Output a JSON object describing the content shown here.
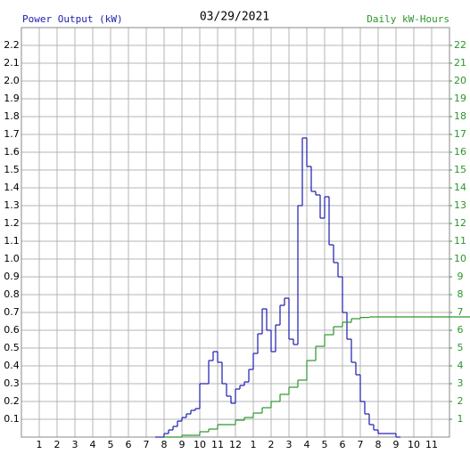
{
  "chart_data": {
    "type": "step",
    "title": "03/29/2021",
    "y_label": "Power Output (kW)",
    "y2_label": "Daily kW-Hours",
    "xlim": [
      0,
      24
    ],
    "xticks": [
      1,
      2,
      3,
      4,
      5,
      6,
      7,
      8,
      9,
      10,
      11,
      12,
      {
        "value": 13,
        "label": "1"
      },
      {
        "value": 14,
        "label": "2"
      },
      {
        "value": 15,
        "label": "3"
      },
      {
        "value": 16,
        "label": "4"
      },
      {
        "value": 17,
        "label": "5"
      },
      {
        "value": 18,
        "label": "6"
      },
      {
        "value": 19,
        "label": "7"
      },
      {
        "value": 20,
        "label": "8"
      },
      {
        "value": 21,
        "label": "9"
      },
      {
        "value": 22,
        "label": "10"
      },
      {
        "value": 23,
        "label": "11"
      }
    ],
    "ylim": [
      0,
      2.3
    ],
    "yticks": [
      0.1,
      0.2,
      0.3,
      0.4,
      0.5,
      0.6,
      0.7,
      0.8,
      0.9,
      {
        "value": 1,
        "label": "1.0"
      },
      1.1,
      1.2,
      1.3,
      1.4,
      1.5,
      1.6,
      1.7,
      1.8,
      1.9,
      {
        "value": 2,
        "label": "2.0"
      },
      2.1,
      2.2
    ],
    "y2lim": [
      0,
      23
    ],
    "y2ticks": [
      1,
      2,
      3,
      4,
      5,
      6,
      7,
      8,
      9,
      10,
      11,
      12,
      13,
      14,
      15,
      16,
      17,
      18,
      19,
      20,
      21,
      22
    ],
    "grid": true,
    "series": [
      {
        "name": "Power Output (kW)",
        "color": "#1c1cb0",
        "x": [
          7.5,
          7.75,
          8,
          8.25,
          8.5,
          8.75,
          9,
          9.25,
          9.5,
          9.75,
          10,
          10.25,
          10.5,
          10.75,
          11,
          11.25,
          11.5,
          11.75,
          12,
          12.25,
          12.5,
          12.75,
          13,
          13.25,
          13.5,
          13.75,
          14,
          14.25,
          14.5,
          14.75,
          15,
          15.25,
          15.5,
          15.75,
          16,
          16.25,
          16.5,
          16.75,
          17,
          17.25,
          17.5,
          17.75,
          18,
          18.25,
          18.5,
          18.75,
          19,
          19.25,
          19.5,
          19.75,
          20,
          20.25,
          20.5,
          20.75,
          21
        ],
        "values": [
          0,
          0,
          0.02,
          0.04,
          0.06,
          0.09,
          0.11,
          0.13,
          0.15,
          0.16,
          0.3,
          0.3,
          0.43,
          0.48,
          0.42,
          0.3,
          0.23,
          0.19,
          0.27,
          0.29,
          0.31,
          0.38,
          0.47,
          0.58,
          0.72,
          0.6,
          0.48,
          0.63,
          0.74,
          0.78,
          0.55,
          0.52,
          1.3,
          1.68,
          1.52,
          1.38,
          1.36,
          1.23,
          1.35,
          1.08,
          0.98,
          0.9,
          0.7,
          0.55,
          0.42,
          0.35,
          0.2,
          0.13,
          0.07,
          0.04,
          0.02,
          0.02,
          0.02,
          0.02,
          0
        ]
      },
      {
        "name": "Daily kW-Hours",
        "color": "#2a962a",
        "axis": "y2",
        "x": [
          8,
          9,
          10,
          10.5,
          11,
          12,
          12.5,
          13,
          13.5,
          14,
          14.5,
          15,
          15.5,
          16,
          16.5,
          17,
          17.5,
          18,
          18.5,
          19,
          19.5,
          20,
          24
        ],
        "values": [
          0,
          0.1,
          0.3,
          0.45,
          0.7,
          0.95,
          1.1,
          1.35,
          1.65,
          2,
          2.4,
          2.8,
          3.2,
          4.3,
          5.1,
          5.75,
          6.2,
          6.45,
          6.65,
          6.72,
          6.75,
          6.75,
          6.75
        ]
      }
    ]
  }
}
